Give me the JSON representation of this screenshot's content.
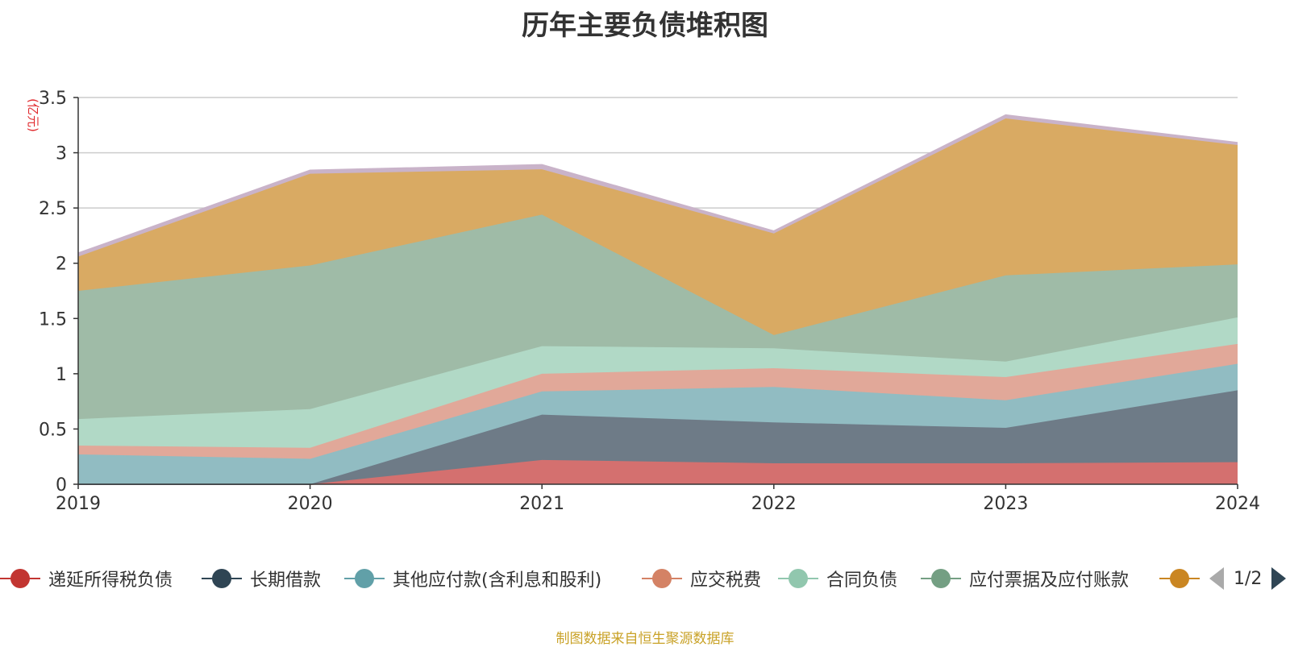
{
  "chart_data": {
    "type": "area",
    "title": "历年主要负债堆积图",
    "ylabel": "(亿元)",
    "xlabel": "",
    "x": [
      "2019",
      "2020",
      "2021",
      "2022",
      "2023",
      "2024"
    ],
    "ylim": [
      0,
      3.5
    ],
    "yticks": [
      "0",
      "0.5",
      "1",
      "1.5",
      "2",
      "2.5",
      "3",
      "3.5"
    ],
    "stacked": true,
    "grid": true,
    "legend_position": "bottom",
    "series": [
      {
        "name": "递延所得税负债",
        "color": "#c23531",
        "fill": "#d4706f",
        "values": [
          0.0,
          0.0,
          0.22,
          0.19,
          0.19,
          0.2
        ]
      },
      {
        "name": "长期借款",
        "color": "#2f4554",
        "fill": "#6e7b87",
        "values": [
          0.0,
          0.0,
          0.41,
          0.37,
          0.32,
          0.65
        ]
      },
      {
        "name": "其他应付款(含利息和股利)",
        "color": "#61a0a8",
        "fill": "#91bcc2",
        "values": [
          0.27,
          0.23,
          0.21,
          0.32,
          0.25,
          0.24
        ]
      },
      {
        "name": "应交税费",
        "color": "#d48265",
        "fill": "#e1a899",
        "values": [
          0.08,
          0.1,
          0.16,
          0.17,
          0.21,
          0.18
        ]
      },
      {
        "name": "合同负债",
        "color": "#91c7ae",
        "fill": "#b1d9c6",
        "values": [
          0.24,
          0.35,
          0.25,
          0.18,
          0.14,
          0.24
        ]
      },
      {
        "name": "应付票据及应付账款",
        "color": "#749f83",
        "fill": "#9fbba7",
        "values": [
          1.16,
          1.3,
          1.19,
          0.12,
          0.78,
          0.48
        ]
      },
      {
        "name": "",
        "color": "#ca8622",
        "fill": "#d9aa63",
        "values": [
          0.31,
          0.83,
          0.41,
          0.92,
          1.42,
          1.08
        ]
      },
      {
        "name": "",
        "color": "#bda29a",
        "fill": "#c9b3c9",
        "values": [
          0.03,
          0.03,
          0.04,
          0.02,
          0.03,
          0.02
        ]
      }
    ]
  },
  "legend": {
    "page": "1/2"
  },
  "source_note": "制图数据来自恒生聚源数据库"
}
